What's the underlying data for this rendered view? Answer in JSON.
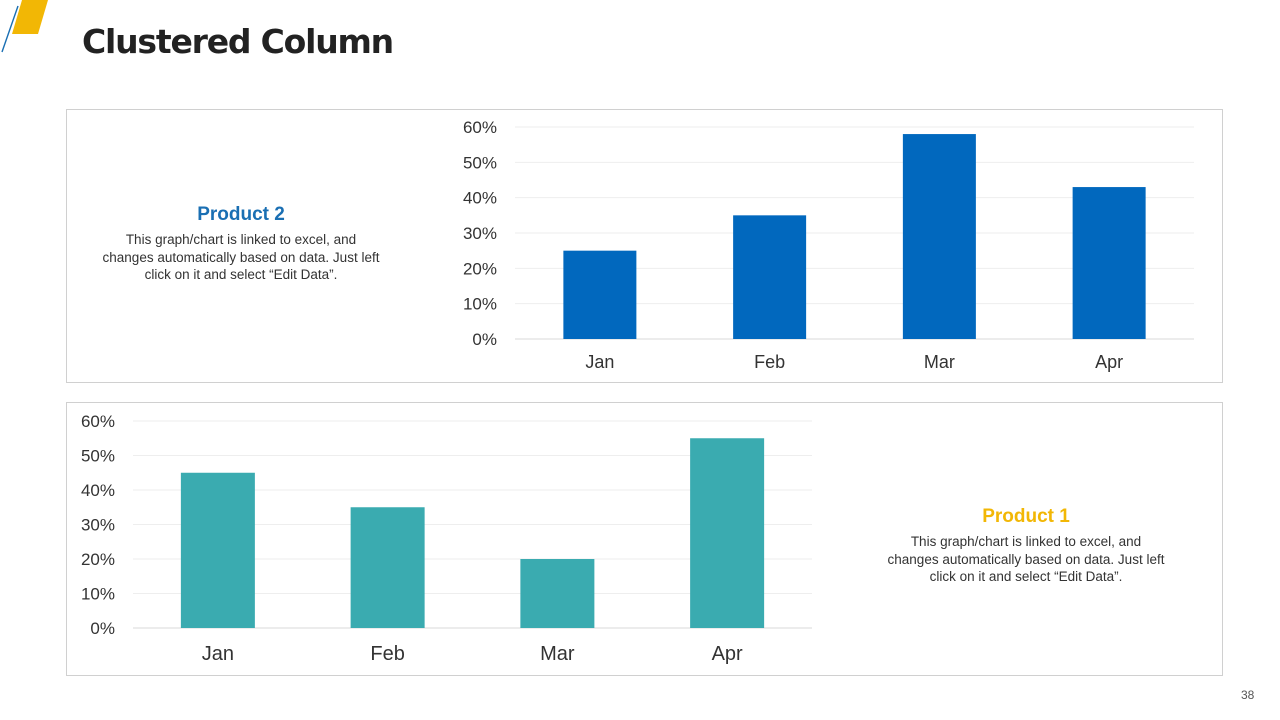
{
  "slide": {
    "title": "Clustered Column",
    "page_number": "38",
    "colors": {
      "accent_yellow": "#f2b705",
      "accent_blue": "#1a6fb3"
    }
  },
  "product2": {
    "title": "Product 2",
    "description": "This graph/chart is linked to excel, and changes automatically based on data. Just left click on it and select “Edit Data”."
  },
  "product1": {
    "title": "Product 1",
    "description": "This graph/chart is linked to excel, and changes automatically based on data. Just left click on it and select “Edit Data”."
  },
  "chart_data": [
    {
      "type": "bar",
      "categories": [
        "Jan",
        "Feb",
        "Mar",
        "Apr"
      ],
      "values": [
        25,
        35,
        58,
        43
      ],
      "value_unit": "%",
      "yticks": [
        "0%",
        "10%",
        "20%",
        "30%",
        "40%",
        "50%",
        "60%"
      ],
      "ylim": [
        0,
        60
      ],
      "grid": true,
      "legend": "none",
      "color": "#0168be",
      "title": "",
      "xlabel": "",
      "ylabel": ""
    },
    {
      "type": "bar",
      "categories": [
        "Jan",
        "Feb",
        "Mar",
        "Apr"
      ],
      "values": [
        45,
        35,
        20,
        55
      ],
      "value_unit": "%",
      "yticks": [
        "0%",
        "10%",
        "20%",
        "30%",
        "40%",
        "50%",
        "60%"
      ],
      "ylim": [
        0,
        60
      ],
      "grid": true,
      "legend": "none",
      "color": "#3aabb0",
      "title": "",
      "xlabel": "",
      "ylabel": ""
    }
  ]
}
